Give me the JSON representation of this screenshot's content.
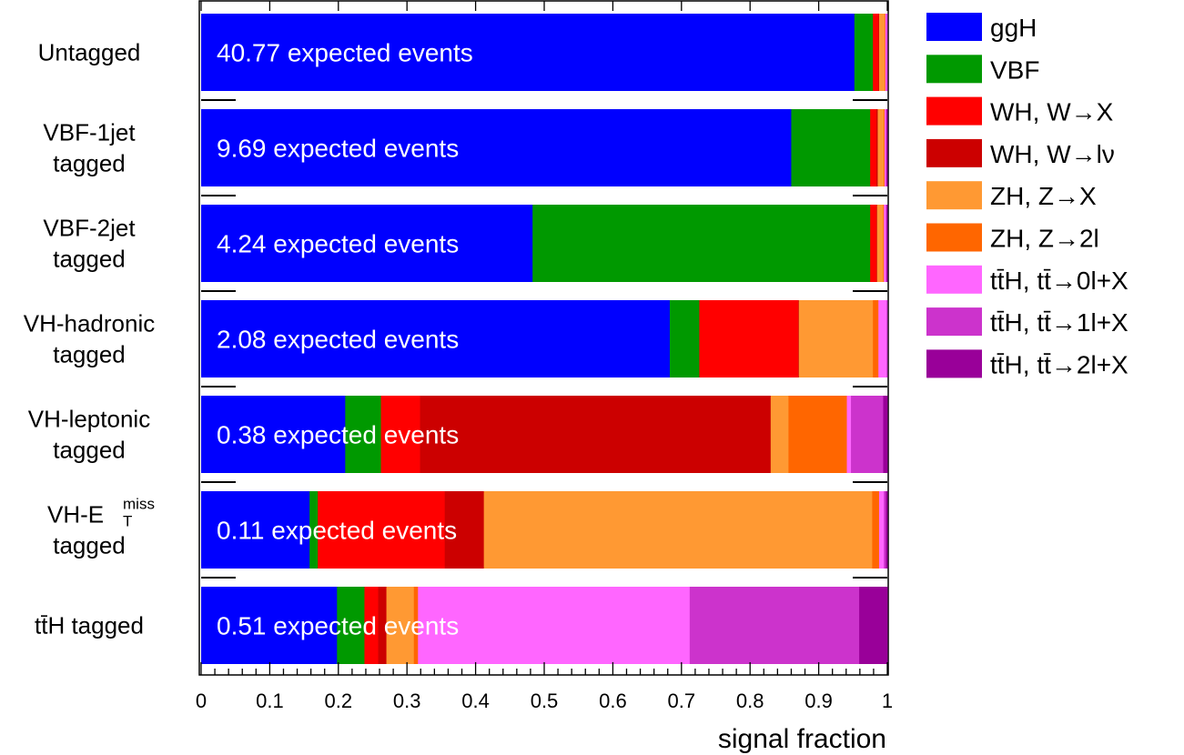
{
  "chart_data": {
    "type": "bar",
    "orientation": "horizontal",
    "stacked": true,
    "xlabel": "signal fraction",
    "ylabel": "",
    "xlim": [
      0,
      1
    ],
    "x_ticks": [
      "0",
      "0.1",
      "0.2",
      "0.3",
      "0.4",
      "0.5",
      "0.6",
      "0.7",
      "0.8",
      "0.9",
      "1"
    ],
    "grid": false,
    "legend_position": "right",
    "categories": [
      {
        "lines": [
          "Untagged"
        ]
      },
      {
        "lines": [
          "VBF-1jet",
          "tagged"
        ]
      },
      {
        "lines": [
          "VBF-2jet",
          "tagged"
        ]
      },
      {
        "lines": [
          "VH-hadronic",
          "tagged"
        ]
      },
      {
        "lines": [
          "VH-leptonic",
          "tagged"
        ]
      },
      {
        "lines": [
          "VH-E",
          "tagged"
        ],
        "sup": "miss",
        "sub": "T"
      },
      {
        "lines": [
          "tt̄H tagged"
        ]
      }
    ],
    "bar_labels": [
      "40.77 expected events",
      "9.69 expected events",
      "4.24 expected events",
      "2.08 expected events",
      "0.38 expected events",
      "0.11 expected events",
      "0.51 expected events"
    ],
    "series": [
      {
        "name": "ggH",
        "color": "#0000ff",
        "values": [
          0.952,
          0.86,
          0.483,
          0.683,
          0.21,
          0.158,
          0.198
        ]
      },
      {
        "name": "VBF",
        "color": "#009900",
        "values": [
          0.027,
          0.115,
          0.492,
          0.043,
          0.052,
          0.012,
          0.04
        ]
      },
      {
        "name": "WH, W→X",
        "color": "#ff0000",
        "values": [
          0.008,
          0.009,
          0.009,
          0.144,
          0.057,
          0.185,
          0.02
        ]
      },
      {
        "name": "WH, W→lν",
        "color": "#cc0000",
        "values": [
          0.001,
          0.002,
          0.001,
          0.001,
          0.511,
          0.057,
          0.012
        ]
      },
      {
        "name": "ZH, Z→X",
        "color": "#ff9933",
        "values": [
          0.008,
          0.009,
          0.009,
          0.108,
          0.026,
          0.566,
          0.04
        ]
      },
      {
        "name": "ZH, Z→2l",
        "color": "#ff6600",
        "values": [
          0.001,
          0.001,
          0.001,
          0.008,
          0.085,
          0.01,
          0.006
        ]
      },
      {
        "name": "tt̄H, tt̄→0l+X",
        "color": "#ff66ff",
        "values": [
          0.002,
          0.002,
          0.003,
          0.012,
          0.006,
          0.007,
          0.396
        ]
      },
      {
        "name": "tt̄H, tt̄→1l+X",
        "color": "#cc33cc",
        "values": [
          0.001,
          0.001,
          0.001,
          0.001,
          0.047,
          0.003,
          0.247
        ]
      },
      {
        "name": "tt̄H, tt̄→2l+X",
        "color": "#990099",
        "values": [
          0.0,
          0.001,
          0.001,
          0.0,
          0.006,
          0.002,
          0.041
        ]
      }
    ]
  }
}
